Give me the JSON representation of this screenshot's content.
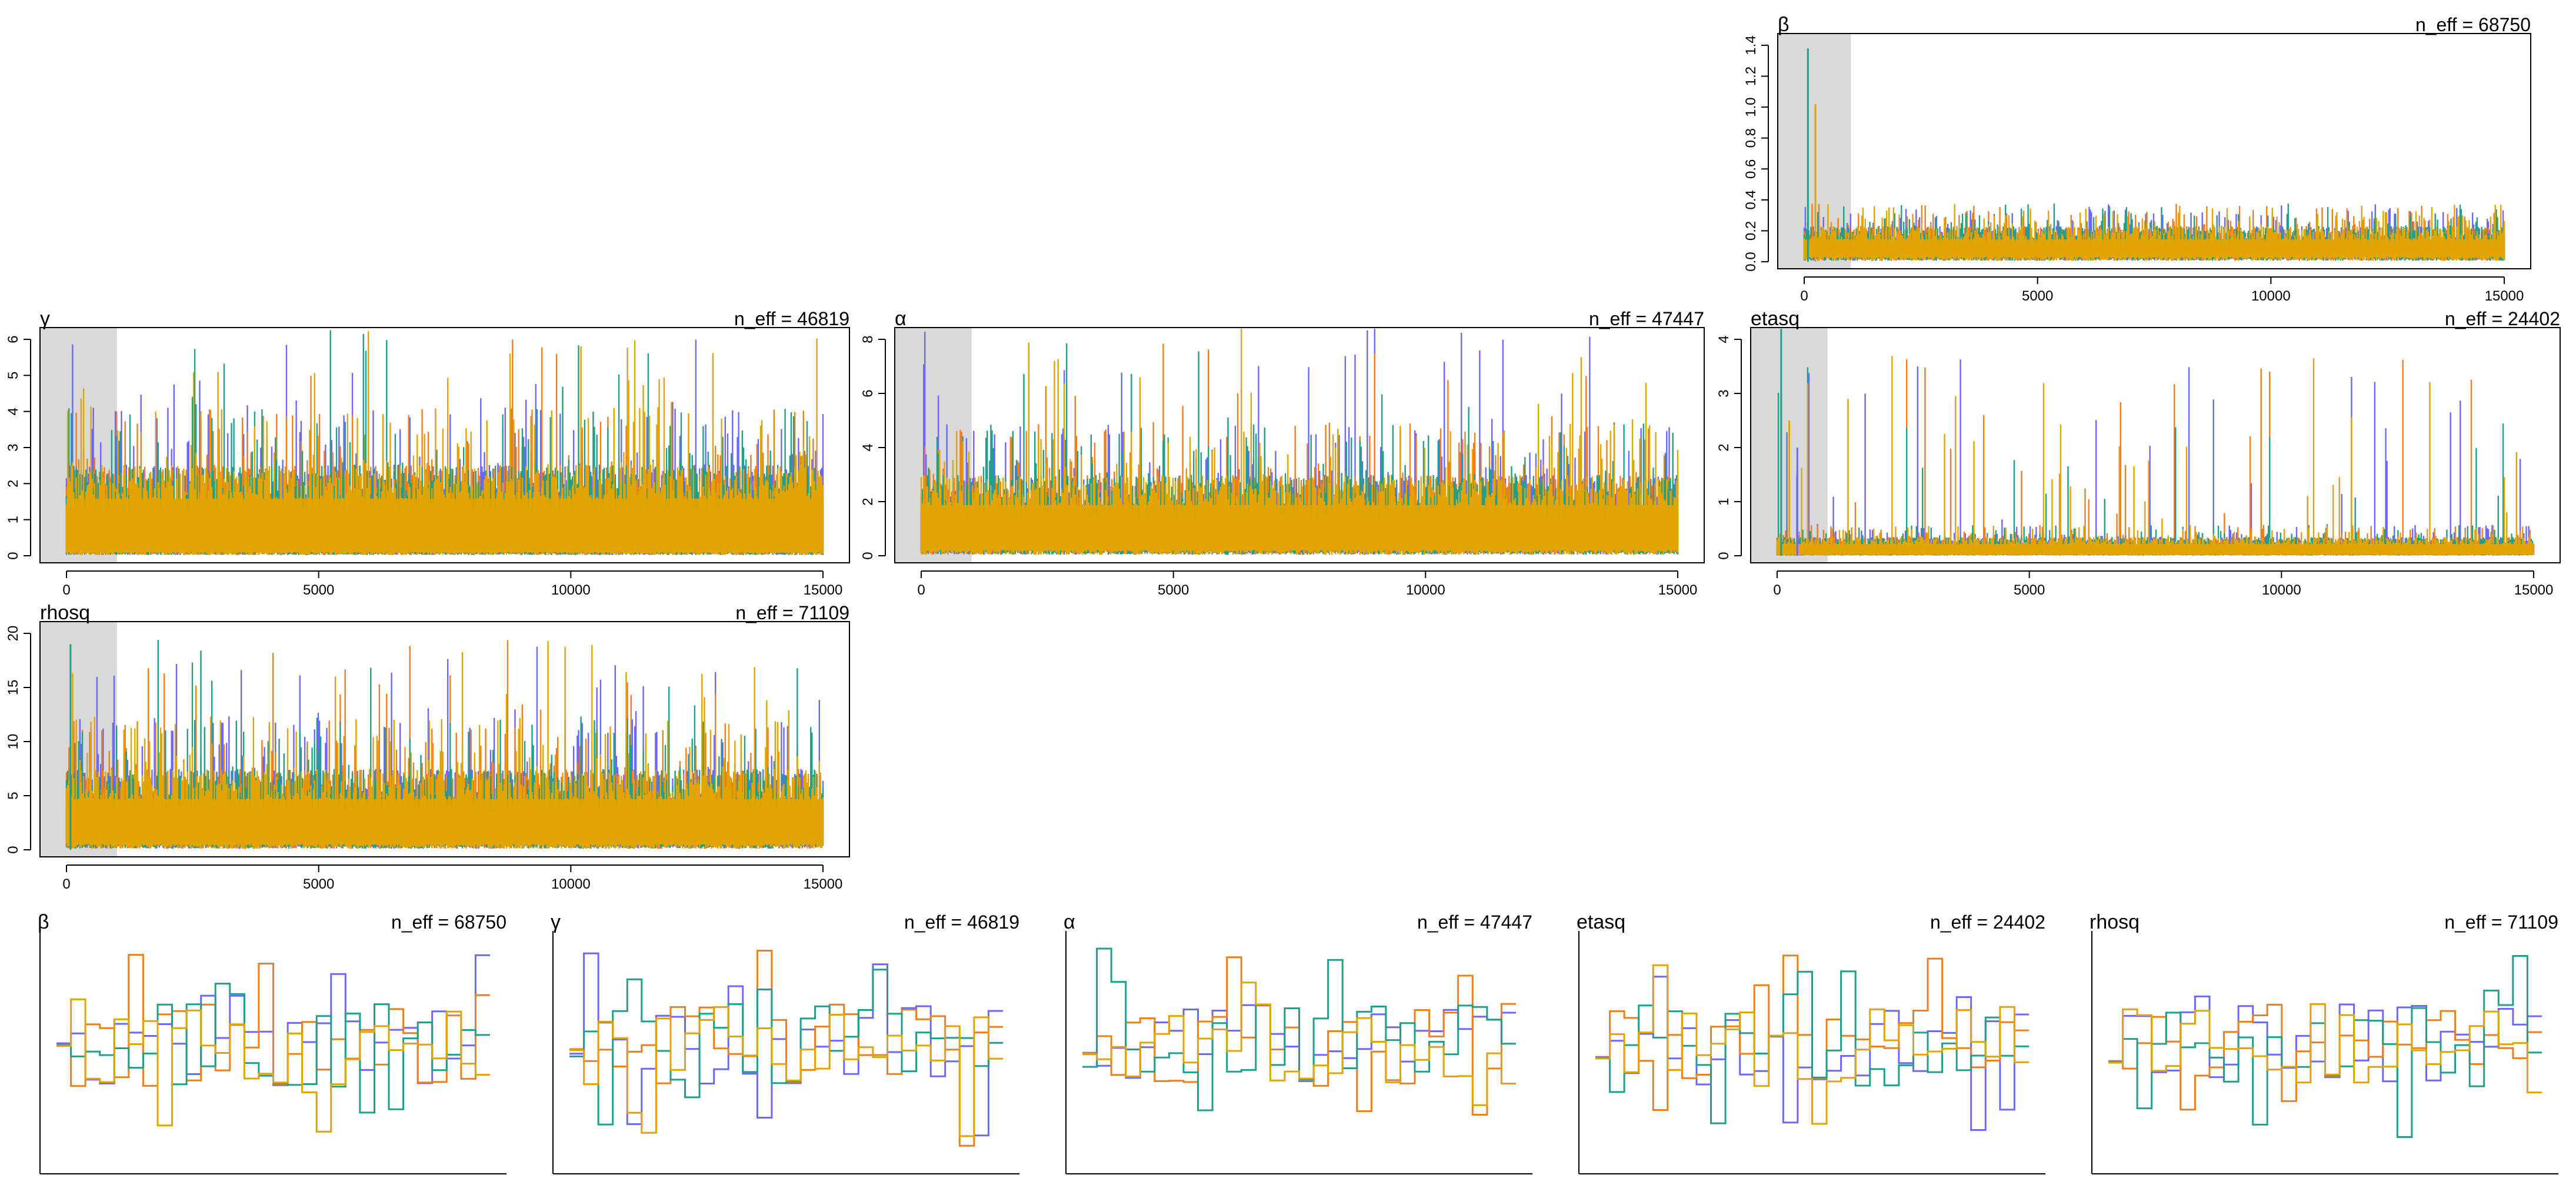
{
  "colors": {
    "chain_1": "#6b67ff",
    "chain_2": "#ee7f1b",
    "chain_3": "#1f9f8c",
    "chain_4": "#e2a400",
    "warmup_shade": "#d9d9d9",
    "frame": "#000000"
  },
  "chart_data": [
    {
      "type": "line",
      "panel": "trace",
      "title": "β",
      "n_eff_label": "n_eff = 68750",
      "x_range": [
        0,
        15000
      ],
      "warmup": [
        0,
        1000
      ],
      "xticks": [
        0,
        5000,
        10000,
        15000
      ],
      "ylim": [
        0,
        1.4
      ],
      "yticks": [
        "0.0",
        "0.2",
        "0.4",
        "0.6",
        "0.8",
        "1.0",
        "1.2",
        "1.4"
      ],
      "chains": 4,
      "band": [
        0.03,
        0.2
      ],
      "spike_max": 0.32,
      "initial_spikes": [
        1.38,
        1.02
      ]
    },
    {
      "type": "line",
      "panel": "trace",
      "title": "γ",
      "n_eff_label": "n_eff = 46819",
      "x_range": [
        0,
        15000
      ],
      "warmup": [
        0,
        1000
      ],
      "xticks": [
        0,
        5000,
        10000,
        15000
      ],
      "ylim": [
        0,
        6
      ],
      "yticks": [
        "0",
        "1",
        "2",
        "3",
        "4",
        "5",
        "6"
      ],
      "chains": 4,
      "band": [
        0.1,
        2.2
      ],
      "spike_max": 6.3,
      "initial_spikes": []
    },
    {
      "type": "line",
      "panel": "trace",
      "title": "α",
      "n_eff_label": "n_eff = 47447",
      "x_range": [
        0,
        15000
      ],
      "warmup": [
        0,
        1000
      ],
      "xticks": [
        0,
        5000,
        10000,
        15000
      ],
      "ylim": [
        0,
        8
      ],
      "yticks": [
        "0",
        "2",
        "4",
        "6",
        "8"
      ],
      "chains": 4,
      "band": [
        0.2,
        2.6
      ],
      "spike_max": 8.5,
      "initial_spikes": []
    },
    {
      "type": "line",
      "panel": "trace",
      "title": "etasq",
      "n_eff_label": "n_eff = 24402",
      "x_range": [
        0,
        15000
      ],
      "warmup": [
        0,
        1000
      ],
      "xticks": [
        0,
        5000,
        10000,
        15000
      ],
      "ylim": [
        0,
        4
      ],
      "yticks": [
        "0",
        "1",
        "2",
        "3",
        "4"
      ],
      "chains": 4,
      "band": [
        0.02,
        0.3
      ],
      "spike_max": 3.7,
      "initial_spikes": [
        4.6,
        2.5,
        2.0
      ]
    },
    {
      "type": "line",
      "panel": "trace",
      "title": "rhosq",
      "n_eff_label": "n_eff = 71109",
      "x_range": [
        0,
        15000
      ],
      "warmup": [
        0,
        1000
      ],
      "xticks": [
        0,
        5000,
        10000,
        15000
      ],
      "ylim": [
        0,
        20
      ],
      "yticks": [
        "0",
        "5",
        "10",
        "15",
        "20"
      ],
      "chains": 4,
      "band": [
        0.5,
        6.5
      ],
      "spike_max": 20,
      "initial_spikes": [
        19
      ]
    },
    {
      "type": "line",
      "panel": "trank",
      "title": "β",
      "n_eff_label": "n_eff = 68750",
      "chains": 4,
      "bins": 30
    },
    {
      "type": "line",
      "panel": "trank",
      "title": "γ",
      "n_eff_label": "n_eff = 46819",
      "chains": 4,
      "bins": 30
    },
    {
      "type": "line",
      "panel": "trank",
      "title": "α",
      "n_eff_label": "n_eff = 47447",
      "chains": 4,
      "bins": 30
    },
    {
      "type": "line",
      "panel": "trank",
      "title": "etasq",
      "n_eff_label": "n_eff = 24402",
      "chains": 4,
      "bins": 30
    },
    {
      "type": "line",
      "panel": "trank",
      "title": "rhosq",
      "n_eff_label": "n_eff = 71109",
      "chains": 4,
      "bins": 30
    }
  ]
}
